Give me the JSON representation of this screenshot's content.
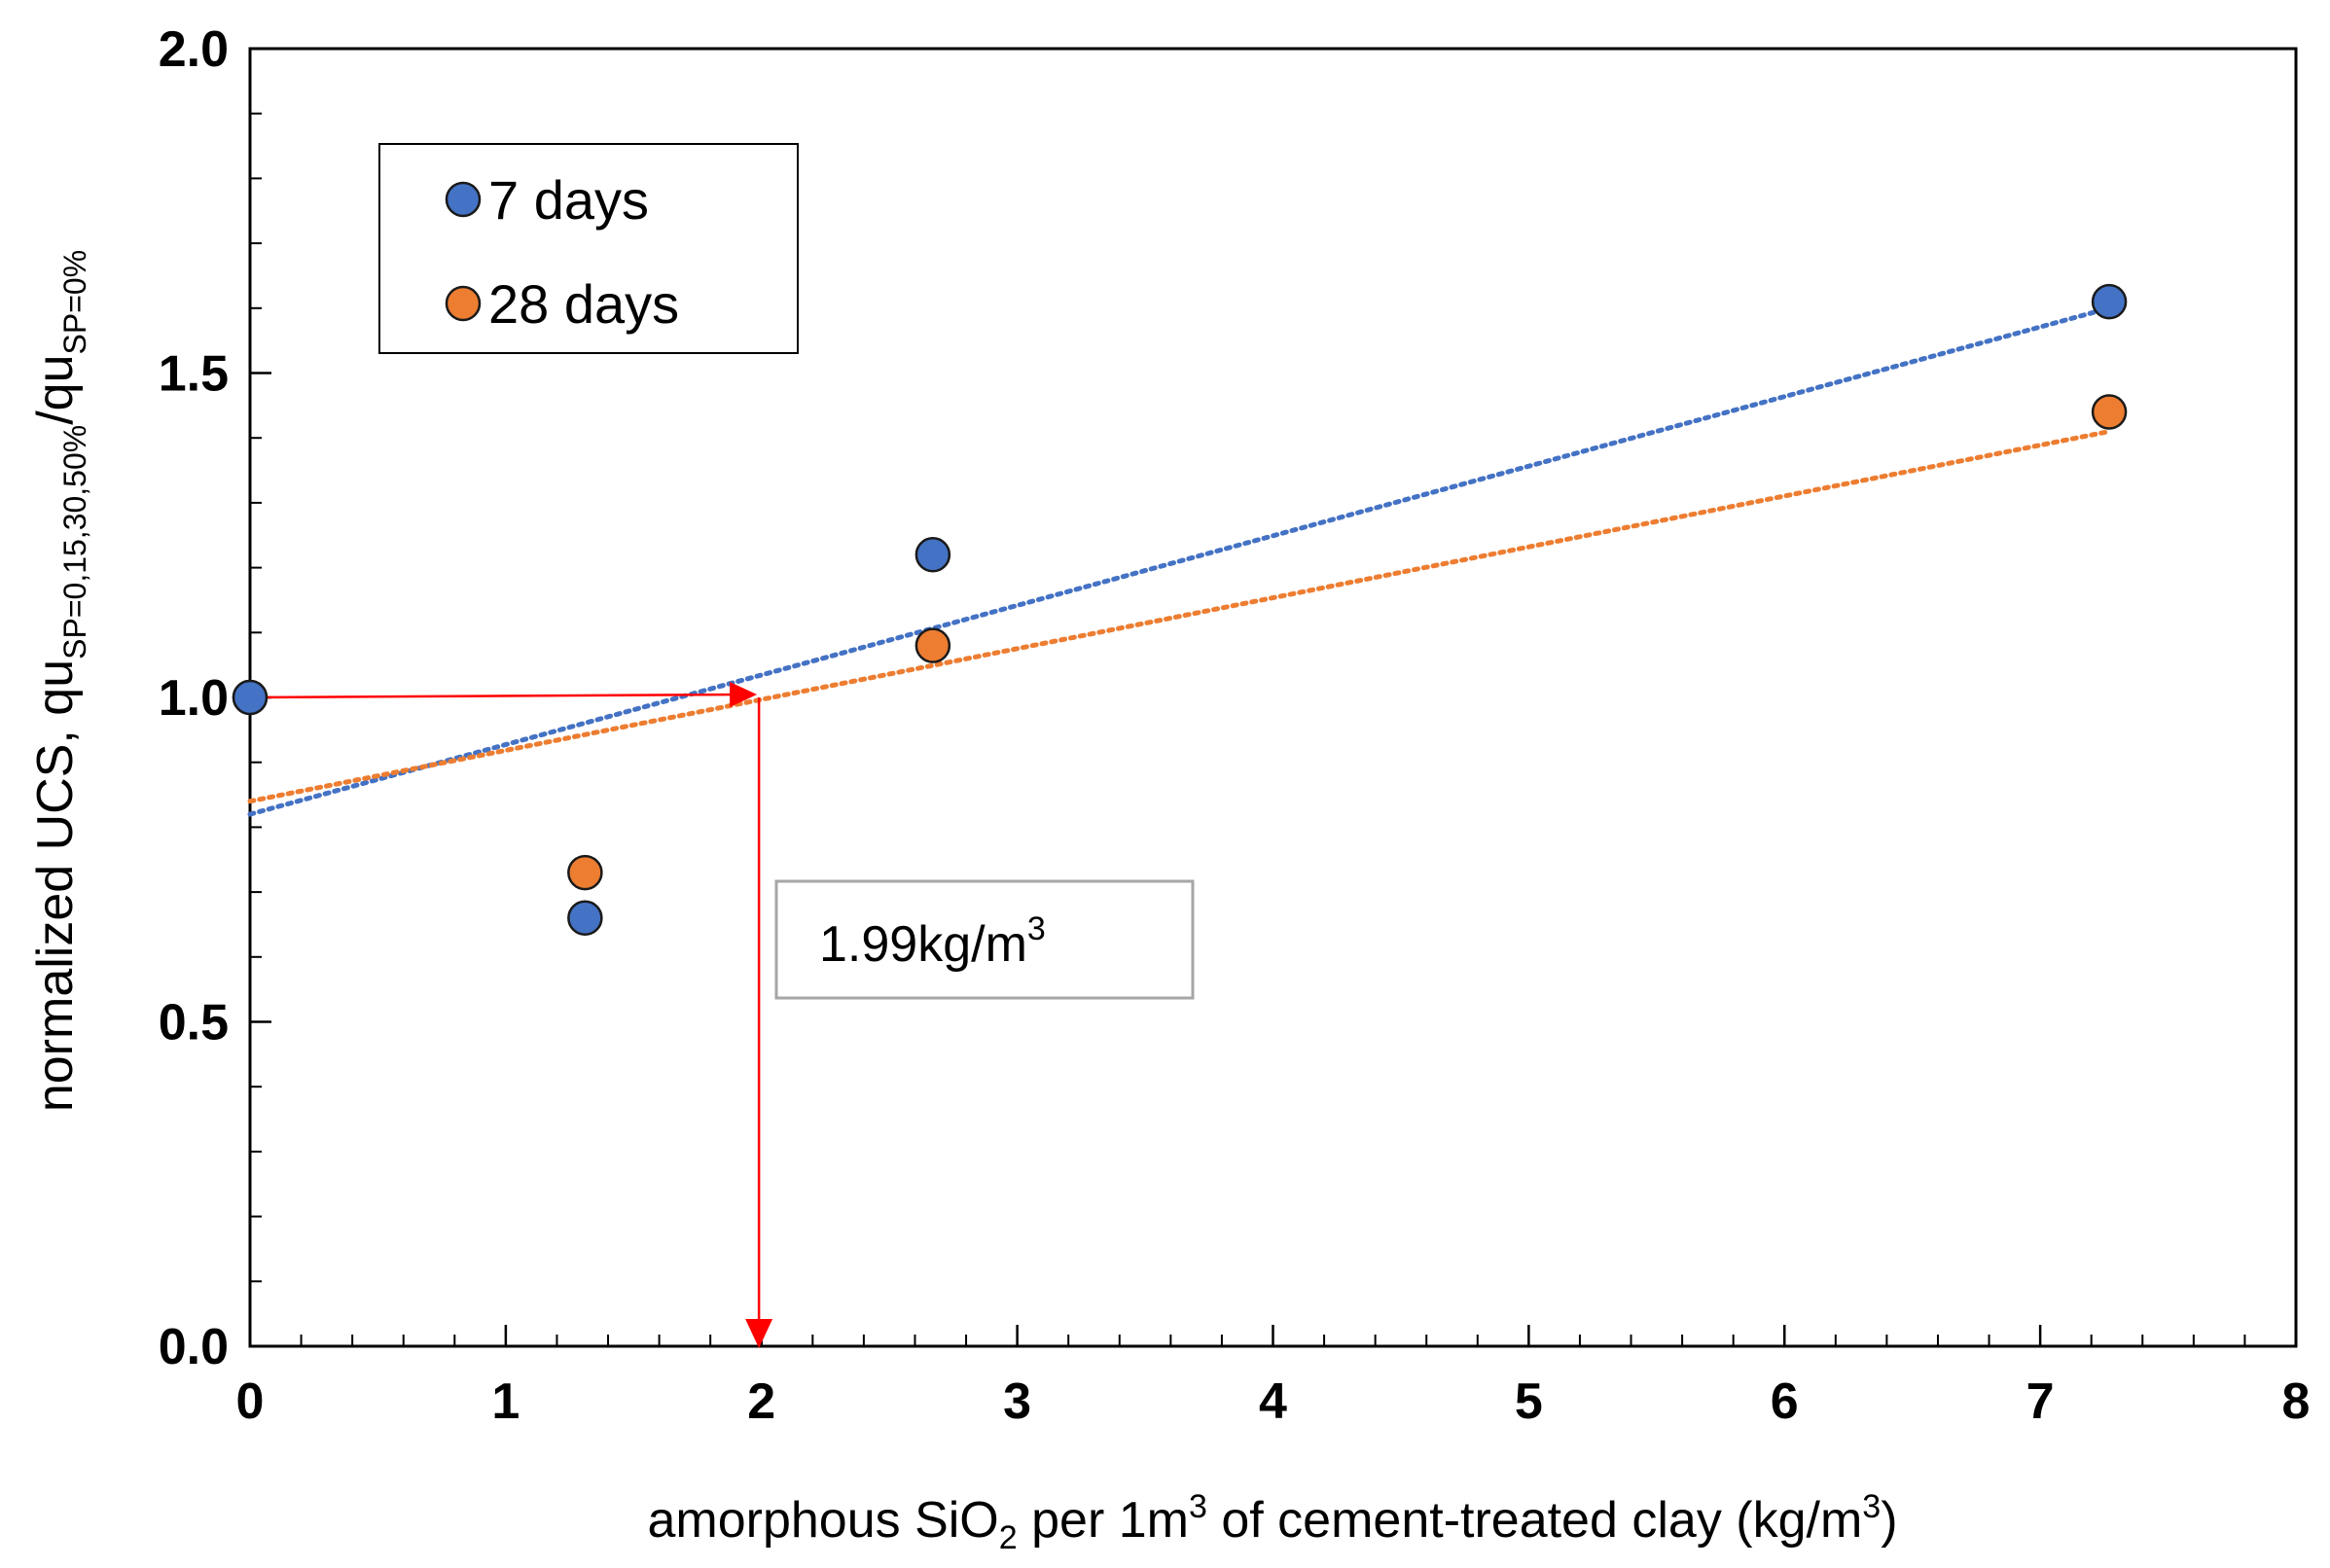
{
  "chart_data": {
    "type": "scatter",
    "title": "",
    "xlabel": {
      "main": "amorphous SiO",
      "sub": "2",
      "middle": " per 1m",
      "sup": "3",
      "tail": " of cement-treated clay (kg/m",
      "sup2": "3",
      "end": ")"
    },
    "ylabel": {
      "main": "normalized UCS, qu",
      "sub1": "SP=0,15,30,50%",
      "middle": "/qu",
      "sub2": "SP=0%"
    },
    "xlim": [
      0,
      8
    ],
    "ylim": [
      0.0,
      2.0
    ],
    "x_ticks": [
      0,
      1,
      2,
      3,
      4,
      5,
      6,
      7,
      8
    ],
    "x_tick_labels": [
      "0",
      "1",
      "2",
      "3",
      "4",
      "5",
      "6",
      "7",
      "8"
    ],
    "y_ticks": [
      0.0,
      0.5,
      1.0,
      1.5,
      2.0
    ],
    "y_tick_labels": [
      "0.0",
      "0.5",
      "1.0",
      "1.5",
      "2.0"
    ],
    "grid": false,
    "legend_position": "top-left",
    "series": [
      {
        "name": "7 days",
        "color": "#4472C4",
        "x": [
          0,
          1.31,
          2.67,
          7.27
        ],
        "y": [
          1.0,
          0.66,
          1.22,
          1.61
        ],
        "trendline": {
          "x": [
            0,
            7.27
          ],
          "y": [
            0.82,
            1.6
          ]
        }
      },
      {
        "name": "28 days",
        "color": "#ED7D31",
        "x": [
          0,
          1.31,
          2.67,
          7.27
        ],
        "y": [
          1.0,
          0.73,
          1.08,
          1.44
        ],
        "trendline": {
          "x": [
            0,
            7.27
          ],
          "y": [
            0.84,
            1.41
          ]
        }
      }
    ],
    "annotations": [
      {
        "text_main": "1.99kg/m",
        "text_sup": "3",
        "x": 1.99,
        "y": 1.0,
        "arrow_color": "#FF0000"
      }
    ]
  }
}
